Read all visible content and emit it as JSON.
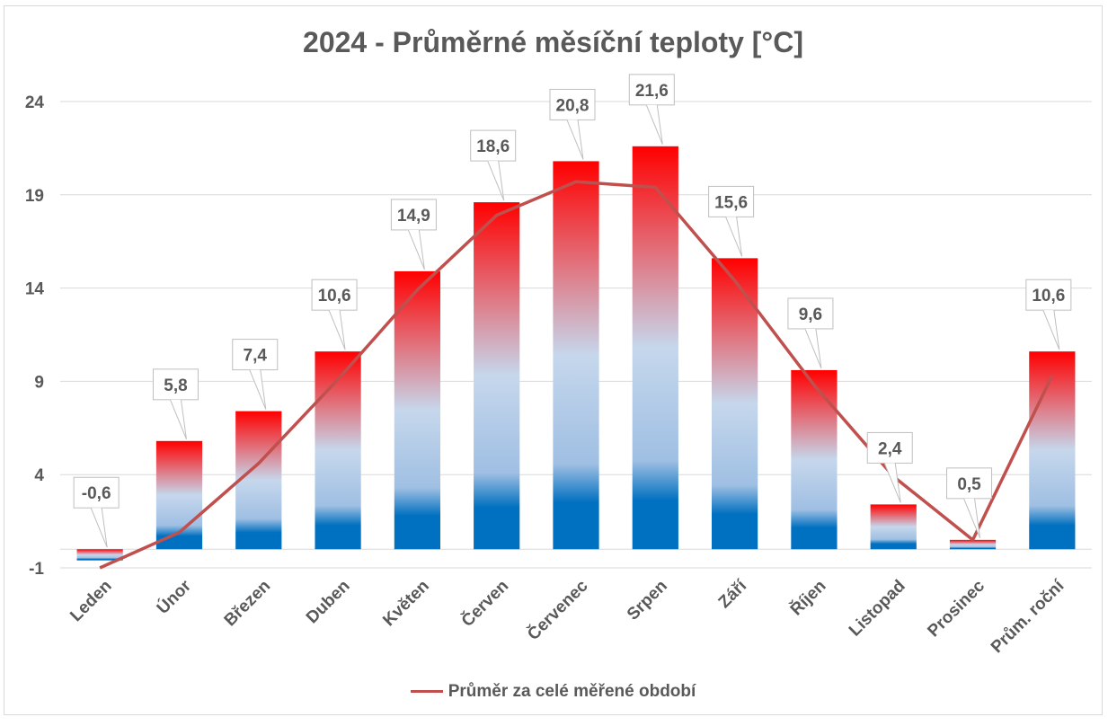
{
  "chart_data": {
    "type": "bar",
    "title": "2024 - Průměrné měsíční teploty [°C]",
    "categories": [
      "Leden",
      "Únor",
      "Březen",
      "Duben",
      "Květen",
      "Červen",
      "Červenec",
      "Srpen",
      "Září",
      "Říjen",
      "Listopad",
      "Prosinec",
      "Prům. roční"
    ],
    "series": [
      {
        "name": "2024",
        "kind": "bar",
        "values": [
          -0.6,
          5.8,
          7.4,
          10.6,
          14.9,
          18.6,
          20.8,
          21.6,
          15.6,
          9.6,
          2.4,
          0.5,
          10.6
        ]
      },
      {
        "name": "Průměr za celé měřené období",
        "kind": "line",
        "color": "#c0504d",
        "values": [
          -1.0,
          0.9,
          4.6,
          9.1,
          13.9,
          17.9,
          19.7,
          19.4,
          14.4,
          8.8,
          3.9,
          0.5,
          9.3
        ]
      }
    ],
    "data_labels": [
      "-0,6",
      "5,8",
      "7,4",
      "10,6",
      "14,9",
      "18,6",
      "20,8",
      "21,6",
      "15,6",
      "9,6",
      "2,4",
      "0,5",
      "10,6"
    ],
    "y_ticks": [
      "-1",
      "4",
      "9",
      "14",
      "19",
      "24"
    ],
    "ylim": [
      -1,
      24
    ],
    "grid": true,
    "legend": {
      "position": "bottom",
      "label": "Průměr za celé měřené období"
    },
    "colors": {
      "bar_top": "#ff0000",
      "bar_mid": "#c6d7ec",
      "bar_bottom": "#0070c0",
      "line": "#c0504d",
      "grid": "#d9d9d9",
      "text": "#595959"
    }
  }
}
